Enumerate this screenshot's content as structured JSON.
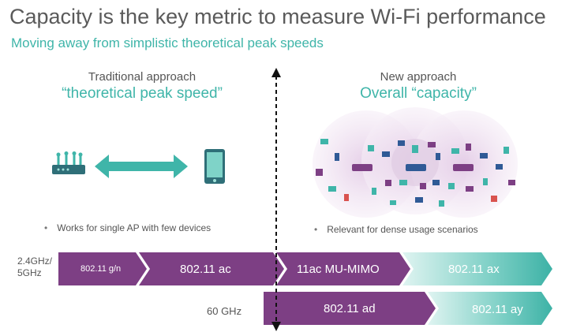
{
  "header": {
    "title": "Capacity is the key metric to measure Wi-Fi performance",
    "subtitle": "Moving away from simplistic theoretical peak speeds"
  },
  "left": {
    "heading": "Traditional approach",
    "accent": "“theoretical peak speed”",
    "bullet": "Works for single AP with few devices"
  },
  "right": {
    "heading": "New approach",
    "accent": "Overall “capacity”",
    "bullet": "Relevant for dense usage scenarios"
  },
  "bands": {
    "band1_line1": "2.4GHz/",
    "band1_line2": "5GHz",
    "band2": "60 GHz"
  },
  "timeline_row1": [
    "802.11 g/n",
    "802.11 ac",
    "11ac MU-MIMO",
    "802.11 ax"
  ],
  "timeline_row2": [
    "802.11 ad",
    "802.11 ay"
  ],
  "bullet_symbol": "•",
  "colors": {
    "accent_teal": "#3fb5a9",
    "purple": "#7d3f84",
    "teal_gradient_start": "#d9f3f0",
    "teal_gradient_end": "#3db2a6",
    "cloud": "#efe2f0"
  },
  "icons": [
    "router-icon",
    "double-arrow-icon",
    "smartphone-icon",
    "device-cloud-icon",
    "divider-arrow-icon"
  ]
}
